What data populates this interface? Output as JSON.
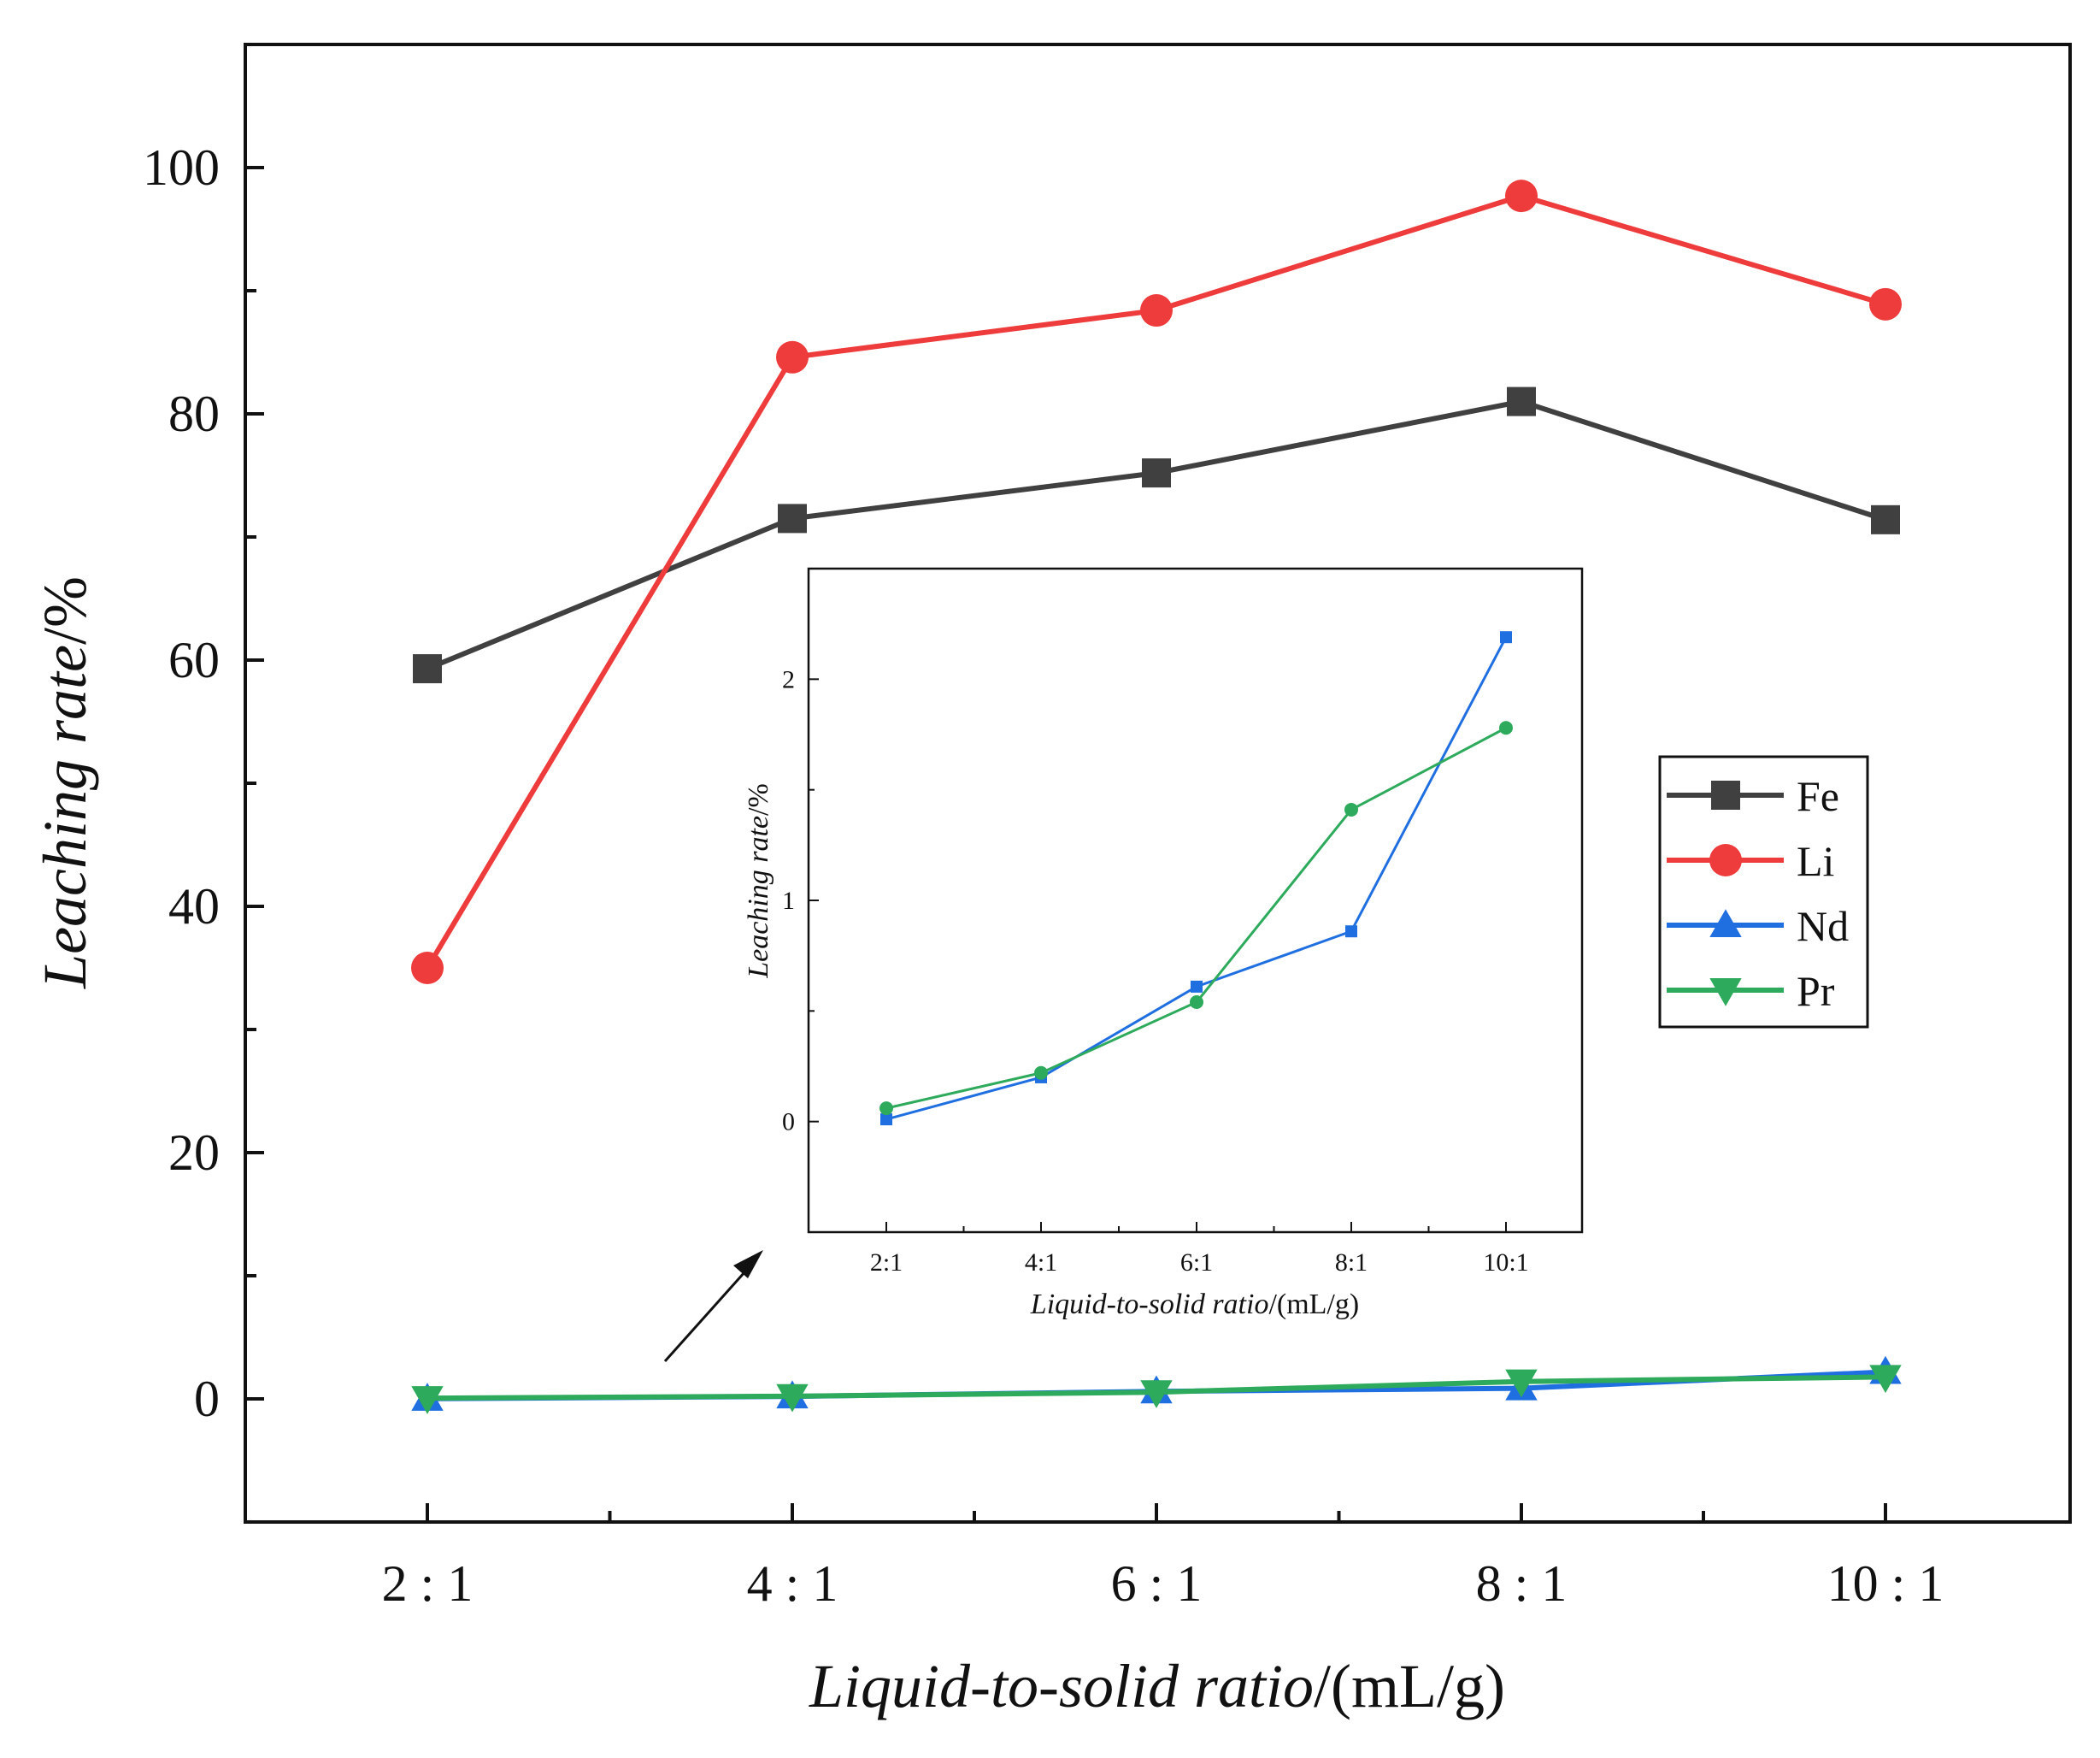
{
  "chart_data": {
    "type": "line",
    "title": "",
    "x": [
      "2:1",
      "4:1",
      "6:1",
      "8:1",
      "10:1"
    ],
    "xlabel": {
      "italic": "Liquid-to-solid ratio",
      "suffix": "/(mL/g)"
    },
    "ylabel": {
      "italic": "Leaching rate",
      "suffix": "/%"
    },
    "ylim": [
      -10,
      110
    ],
    "yticks": [
      0,
      20,
      40,
      60,
      80,
      100
    ],
    "grid": false,
    "legend_position": "right",
    "series": [
      {
        "name": "Fe",
        "color": "#404040",
        "marker": "square",
        "values": [
          59.3,
          71.5,
          75.2,
          81.0,
          71.4
        ]
      },
      {
        "name": "Li",
        "color": "#ee3b3b",
        "marker": "circle",
        "values": [
          35.0,
          84.6,
          88.4,
          97.7,
          88.9
        ]
      },
      {
        "name": "Nd",
        "color": "#1f6fe0",
        "marker": "triangle-up",
        "values": [
          0.01,
          0.2,
          0.61,
          0.86,
          2.19
        ]
      },
      {
        "name": "Pr",
        "color": "#2eaa5c",
        "marker": "triangle-down",
        "values": [
          0.06,
          0.22,
          0.54,
          1.41,
          1.78
        ]
      }
    ],
    "inset": {
      "x": [
        "2:1",
        "4:1",
        "6:1",
        "8:1",
        "10:1"
      ],
      "xlabel": {
        "italic": "Liquid-to-solid ratio",
        "suffix": "/(mL/g)"
      },
      "ylabel": {
        "italic": "Leaching rate",
        "suffix": "/%"
      },
      "ylim": [
        -0.5,
        2.5
      ],
      "yticks": [
        0,
        1,
        2
      ],
      "series": [
        {
          "name": "Nd",
          "color": "#1f6fe0",
          "marker": "square",
          "values": [
            0.01,
            0.2,
            0.61,
            0.86,
            2.19
          ]
        },
        {
          "name": "Pr",
          "color": "#2eaa5c",
          "marker": "circle",
          "values": [
            0.06,
            0.22,
            0.54,
            1.41,
            1.78
          ]
        }
      ]
    }
  }
}
